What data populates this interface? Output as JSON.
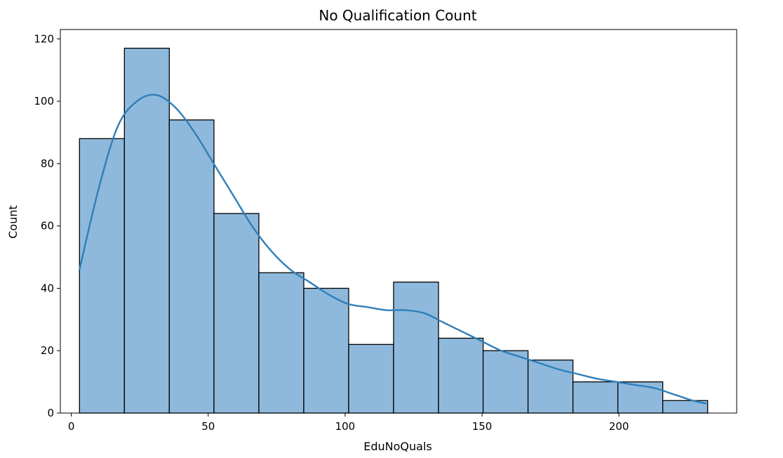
{
  "chart_data": {
    "type": "bar",
    "title": "No Qualification Count",
    "xlabel": "EduNoQuals",
    "ylabel": "Count",
    "xlim": [
      -4,
      243
    ],
    "ylim": [
      0,
      123
    ],
    "xticks": [
      0,
      50,
      100,
      150,
      200
    ],
    "yticks": [
      0,
      20,
      40,
      60,
      80,
      100,
      120
    ],
    "bins": [
      {
        "x0": 3,
        "x1": 19.4,
        "count": 88
      },
      {
        "x0": 19.4,
        "x1": 35.8,
        "count": 117
      },
      {
        "x0": 35.8,
        "x1": 52.1,
        "count": 94
      },
      {
        "x0": 52.1,
        "x1": 68.5,
        "count": 64
      },
      {
        "x0": 68.5,
        "x1": 84.9,
        "count": 45
      },
      {
        "x0": 84.9,
        "x1": 101.3,
        "count": 40
      },
      {
        "x0": 101.3,
        "x1": 117.7,
        "count": 22
      },
      {
        "x0": 117.7,
        "x1": 134.1,
        "count": 42
      },
      {
        "x0": 134.1,
        "x1": 150.4,
        "count": 24
      },
      {
        "x0": 150.4,
        "x1": 166.8,
        "count": 20
      },
      {
        "x0": 166.8,
        "x1": 183.2,
        "count": 17
      },
      {
        "x0": 183.2,
        "x1": 199.6,
        "count": 10
      },
      {
        "x0": 199.6,
        "x1": 216.0,
        "count": 10
      },
      {
        "x0": 216.0,
        "x1": 232.4,
        "count": 4
      }
    ],
    "kde": {
      "x": [
        3,
        10,
        17,
        24,
        31,
        38,
        45,
        52,
        59,
        66,
        73,
        80,
        87,
        94,
        101,
        108,
        115,
        122,
        129,
        136,
        143,
        150,
        157,
        164,
        171,
        178,
        185,
        192,
        199,
        206,
        213,
        220,
        227,
        232
      ],
      "y": [
        46,
        72,
        92,
        100,
        102,
        98,
        90,
        80,
        70,
        60,
        52,
        46,
        42,
        38,
        35,
        34,
        33,
        33,
        32,
        29,
        26,
        23,
        20,
        18,
        16,
        14,
        12.5,
        11,
        10,
        9,
        8,
        6,
        4,
        3
      ]
    },
    "colors": {
      "bar_fill": "#8fb9dc",
      "bar_edge": "#000000",
      "kde_line": "#2e7fba",
      "axes": "#000000"
    },
    "grid": false,
    "legend": "none"
  }
}
